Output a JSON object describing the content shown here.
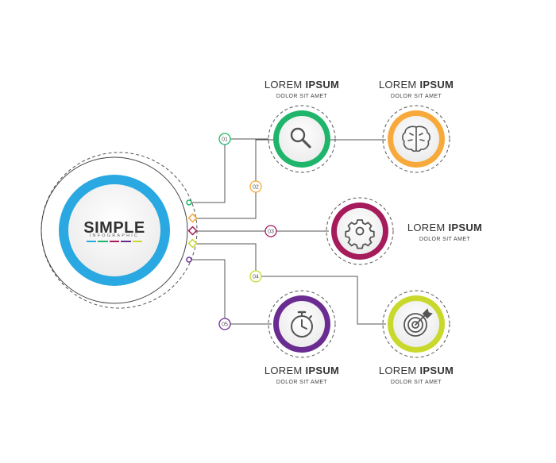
{
  "hub": {
    "title": "SIMPLE",
    "subtitle": "INFOGRAPHIC",
    "ring_color": "#29a8e1"
  },
  "steps": [
    {
      "number": "01",
      "color": "#1fb56b",
      "icon": "search-icon",
      "title_light": "LOREM",
      "title_bold": "IPSUM",
      "subtitle": "DOLOR SIT AMET"
    },
    {
      "number": "02",
      "color": "#f7a93b",
      "icon": "brain-icon",
      "title_light": "LOREM",
      "title_bold": "IPSUM",
      "subtitle": "DOLOR SIT AMET"
    },
    {
      "number": "03",
      "color": "#a61b5b",
      "icon": "gear-icon",
      "title_light": "LOREM",
      "title_bold": "IPSUM",
      "subtitle": "DOLOR SIT AMET"
    },
    {
      "number": "04",
      "color": "#c8d92b",
      "icon": "target-icon",
      "title_light": "LOREM",
      "title_bold": "IPSUM",
      "subtitle": "DOLOR SIT AMET"
    },
    {
      "number": "05",
      "color": "#6a2c91",
      "icon": "stopwatch-icon",
      "title_light": "LOREM",
      "title_bold": "IPSUM",
      "subtitle": "DOLOR SIT AMET"
    }
  ]
}
